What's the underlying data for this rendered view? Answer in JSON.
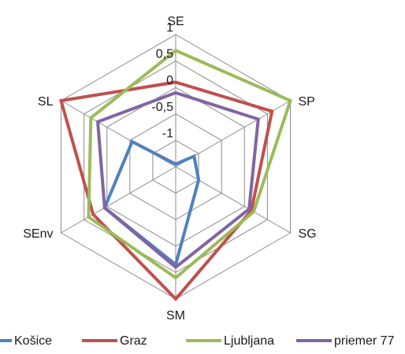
{
  "chart_data": {
    "type": "radar",
    "title": "",
    "axes": [
      "SE",
      "SP",
      "SG",
      "SM",
      "SEnv",
      "SL"
    ],
    "ticks": [
      "-1",
      "-0,5",
      "0",
      "0,5",
      "1"
    ],
    "rlim": [
      -1.5,
      1
    ],
    "grid": true,
    "legend_position": "bottom",
    "series": [
      {
        "name": "Košice",
        "color": "#4f81bd",
        "values": [
          -1.45,
          -1.1,
          -1.0,
          0.35,
          0.05,
          -0.55
        ]
      },
      {
        "name": "Graz",
        "color": "#c0504d",
        "values": [
          0.1,
          0.6,
          0.15,
          1.0,
          0.3,
          1.0
        ]
      },
      {
        "name": "Ljubljana",
        "color": "#9bbb59",
        "values": [
          0.7,
          1.0,
          0.2,
          0.6,
          0.4,
          0.35
        ]
      },
      {
        "name": "priemer 77",
        "color": "#8064a2",
        "values": [
          -0.1,
          0.3,
          0.1,
          0.4,
          0.05,
          0.2
        ]
      }
    ]
  }
}
